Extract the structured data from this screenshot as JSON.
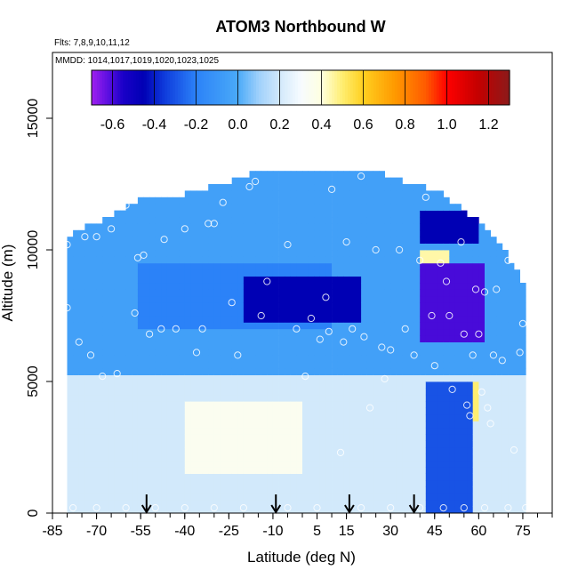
{
  "chart_data": {
    "type": "heatmap",
    "title": "ATOM3 Northbound W",
    "notes": {
      "flights": "Flts: 7,8,9,10,11,12",
      "mmdd": "MMDD: 1014,1017,1019,1020,1023,1025"
    },
    "xlabel": "Latitude (deg N)",
    "ylabel": "Altitude (m)",
    "xlim": [
      -85,
      85
    ],
    "ylim": [
      0,
      17500
    ],
    "x_ticks": [
      -85,
      -70,
      -55,
      -40,
      -25,
      -10,
      5,
      15,
      30,
      45,
      60,
      75
    ],
    "x_minor_step": 5,
    "y_ticks": [
      0,
      5000,
      10000,
      15000
    ],
    "colorbar": {
      "range": [
        -0.7,
        1.3
      ],
      "ticks": [
        -0.6,
        -0.4,
        -0.2,
        0.0,
        0.2,
        0.4,
        0.6,
        0.8,
        1.0,
        1.2
      ],
      "tick_labels": [
        "-0.6",
        "-0.4",
        "-0.2",
        "0.0",
        "0.2",
        "0.4",
        "0.6",
        "0.8",
        "1.0",
        "1.2"
      ],
      "stops": [
        [
          -0.7,
          "#a020f0"
        ],
        [
          -0.62,
          "#5b0fe0"
        ],
        [
          -0.55,
          "#1a00c8"
        ],
        [
          -0.45,
          "#0000b4"
        ],
        [
          -0.35,
          "#0f3cdc"
        ],
        [
          -0.2,
          "#2b82f8"
        ],
        [
          0.0,
          "#4aaaf8"
        ],
        [
          0.1,
          "#9fd0fb"
        ],
        [
          0.2,
          "#d2e9fb"
        ],
        [
          0.3,
          "#f6fbff"
        ],
        [
          0.4,
          "#ffffe0"
        ],
        [
          0.5,
          "#ffee70"
        ],
        [
          0.6,
          "#ffcf20"
        ],
        [
          0.75,
          "#ff9a00"
        ],
        [
          0.9,
          "#ff5a00"
        ],
        [
          1.0,
          "#ff0000"
        ],
        [
          1.15,
          "#c40000"
        ],
        [
          1.3,
          "#8b1a1a"
        ]
      ]
    },
    "profile_arrows_lat": [
      -53,
      -9,
      16,
      38
    ],
    "domain_bounds": [
      {
        "lat": -80,
        "top": 10300
      },
      {
        "lat": -75,
        "top": 10700
      },
      {
        "lat": -65,
        "top": 11200
      },
      {
        "lat": -55,
        "top": 11800
      },
      {
        "lat": -40,
        "top": 12000
      },
      {
        "lat": -22,
        "top": 12600
      },
      {
        "lat": -10,
        "top": 13000
      },
      {
        "lat": 5,
        "top": 13000
      },
      {
        "lat": 22,
        "top": 13000
      },
      {
        "lat": 35,
        "top": 12500
      },
      {
        "lat": 48,
        "top": 12000
      },
      {
        "lat": 60,
        "top": 11000
      },
      {
        "lat": 70,
        "top": 9700
      },
      {
        "lat": 76,
        "top": 8500
      }
    ],
    "field_regions": [
      {
        "lat": [
          -80,
          76
        ],
        "alt": [
          0,
          5200
        ],
        "value": 0.2,
        "desc": "lower troposphere background"
      },
      {
        "lat": [
          -40,
          0
        ],
        "alt": [
          1500,
          4200
        ],
        "value": 0.35
      },
      {
        "lat": [
          -80,
          76
        ],
        "alt": [
          5200,
          13000
        ],
        "value": -0.05,
        "desc": "upper troposphere background"
      },
      {
        "lat": [
          -55,
          10
        ],
        "alt": [
          7000,
          9500
        ],
        "value": -0.2
      },
      {
        "lat": [
          -20,
          20
        ],
        "alt": [
          7200,
          9000
        ],
        "value": -0.45
      },
      {
        "lat": [
          40,
          62
        ],
        "alt": [
          6500,
          9500
        ],
        "value": -0.6
      },
      {
        "lat": [
          40,
          60
        ],
        "alt": [
          10200,
          11500
        ],
        "value": -0.45
      },
      {
        "lat": [
          42,
          58
        ],
        "alt": [
          0,
          5000
        ],
        "value": -0.3
      },
      {
        "lat": [
          40,
          50
        ],
        "alt": [
          9400,
          10000
        ],
        "value": 0.45
      },
      {
        "lat": [
          58,
          60
        ],
        "alt": [
          3500,
          5000
        ],
        "value": 0.5
      }
    ],
    "observation_points": [
      [
        -80,
        7800
      ],
      [
        -80,
        10200
      ],
      [
        -76,
        6500
      ],
      [
        -74,
        10500
      ],
      [
        -72,
        6000
      ],
      [
        -70,
        10500
      ],
      [
        -68,
        5200
      ],
      [
        -65,
        10800
      ],
      [
        -63,
        5300
      ],
      [
        -60,
        11700
      ],
      [
        -57,
        7600
      ],
      [
        -56,
        9700
      ],
      [
        -54,
        9800
      ],
      [
        -52,
        6800
      ],
      [
        -48,
        7000
      ],
      [
        -47,
        10400
      ],
      [
        -43,
        7000
      ],
      [
        -40,
        10800
      ],
      [
        -36,
        6100
      ],
      [
        -34,
        7000
      ],
      [
        -32,
        11000
      ],
      [
        -30,
        11000
      ],
      [
        -27,
        11800
      ],
      [
        -24,
        8000
      ],
      [
        -22,
        6000
      ],
      [
        -18,
        12400
      ],
      [
        -16,
        12600
      ],
      [
        -14,
        7500
      ],
      [
        -12,
        8800
      ],
      [
        -10,
        13200
      ],
      [
        -5,
        10200
      ],
      [
        -2,
        7000
      ],
      [
        1,
        5200
      ],
      [
        3,
        7400
      ],
      [
        6,
        6600
      ],
      [
        8,
        8200
      ],
      [
        9,
        6900
      ],
      [
        10,
        12300
      ],
      [
        13,
        2300
      ],
      [
        14,
        6500
      ],
      [
        15,
        10300
      ],
      [
        17,
        7000
      ],
      [
        20,
        12800
      ],
      [
        21,
        6700
      ],
      [
        23,
        4000
      ],
      [
        25,
        10000
      ],
      [
        27,
        6300
      ],
      [
        28,
        5100
      ],
      [
        30,
        6200
      ],
      [
        33,
        10000
      ],
      [
        35,
        7000
      ],
      [
        38,
        6000
      ],
      [
        40,
        9600
      ],
      [
        42,
        12000
      ],
      [
        44,
        7500
      ],
      [
        45,
        5600
      ],
      [
        47,
        9500
      ],
      [
        49,
        8800
      ],
      [
        50,
        7500
      ],
      [
        51,
        4700
      ],
      [
        53,
        12000
      ],
      [
        54,
        10300
      ],
      [
        55,
        6800
      ],
      [
        56,
        4100
      ],
      [
        57,
        3700
      ],
      [
        58,
        6000
      ],
      [
        59,
        8500
      ],
      [
        60,
        6800
      ],
      [
        61,
        4600
      ],
      [
        62,
        8400
      ],
      [
        63,
        4000
      ],
      [
        64,
        3400
      ],
      [
        65,
        6000
      ],
      [
        66,
        8500
      ],
      [
        68,
        5800
      ],
      [
        70,
        9600
      ],
      [
        72,
        2400
      ],
      [
        74,
        6100
      ],
      [
        75,
        7200
      ],
      [
        -78,
        200
      ],
      [
        -70,
        200
      ],
      [
        -60,
        200
      ],
      [
        -50,
        200
      ],
      [
        -40,
        200
      ],
      [
        -30,
        200
      ],
      [
        -20,
        200
      ],
      [
        -5,
        200
      ],
      [
        5,
        200
      ],
      [
        20,
        200
      ],
      [
        30,
        200
      ],
      [
        40,
        200
      ],
      [
        48,
        200
      ],
      [
        55,
        200
      ],
      [
        62,
        200
      ],
      [
        70,
        200
      ],
      [
        76,
        200
      ]
    ]
  }
}
